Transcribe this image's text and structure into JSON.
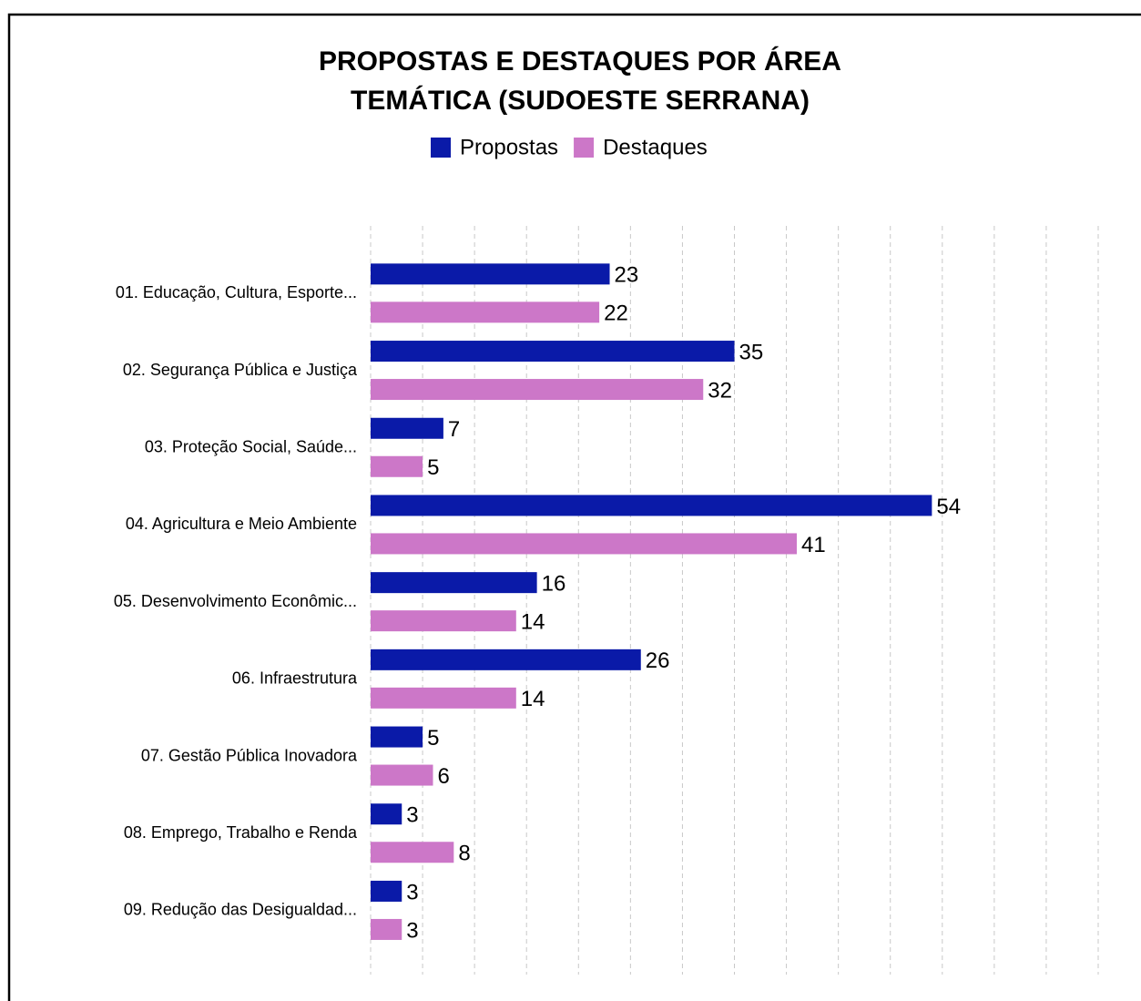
{
  "chart_data": {
    "type": "bar",
    "orientation": "horizontal",
    "title": "PROPOSTAS E DESTAQUES POR ÁREA TEMÁTICA (SUDOESTE SERRANA)",
    "categories": [
      "01. Educação, Cultura, Esporte...",
      "02. Segurança Pública e Justiça",
      "03. Proteção Social, Saúde...",
      "04. Agricultura e Meio Ambiente",
      "05. Desenvolvimento Econômic...",
      "06. Infraestrutura",
      "07. Gestão Pública Inovadora",
      "08. Emprego, Trabalho e Renda",
      "09. Redução das Desigualdad..."
    ],
    "series": [
      {
        "name": "Propostas",
        "color": "#0a1aa8",
        "values": [
          23,
          35,
          7,
          54,
          16,
          26,
          5,
          3,
          3
        ]
      },
      {
        "name": "Destaques",
        "color": "#cc77c8",
        "values": [
          22,
          32,
          5,
          41,
          14,
          14,
          6,
          8,
          3
        ]
      }
    ],
    "xlim": [
      0,
      70
    ],
    "xticks": [
      0,
      5,
      10,
      15,
      20,
      25,
      30,
      35,
      40,
      45,
      50,
      55,
      60,
      65,
      70
    ],
    "grid": true,
    "legend": "top"
  }
}
